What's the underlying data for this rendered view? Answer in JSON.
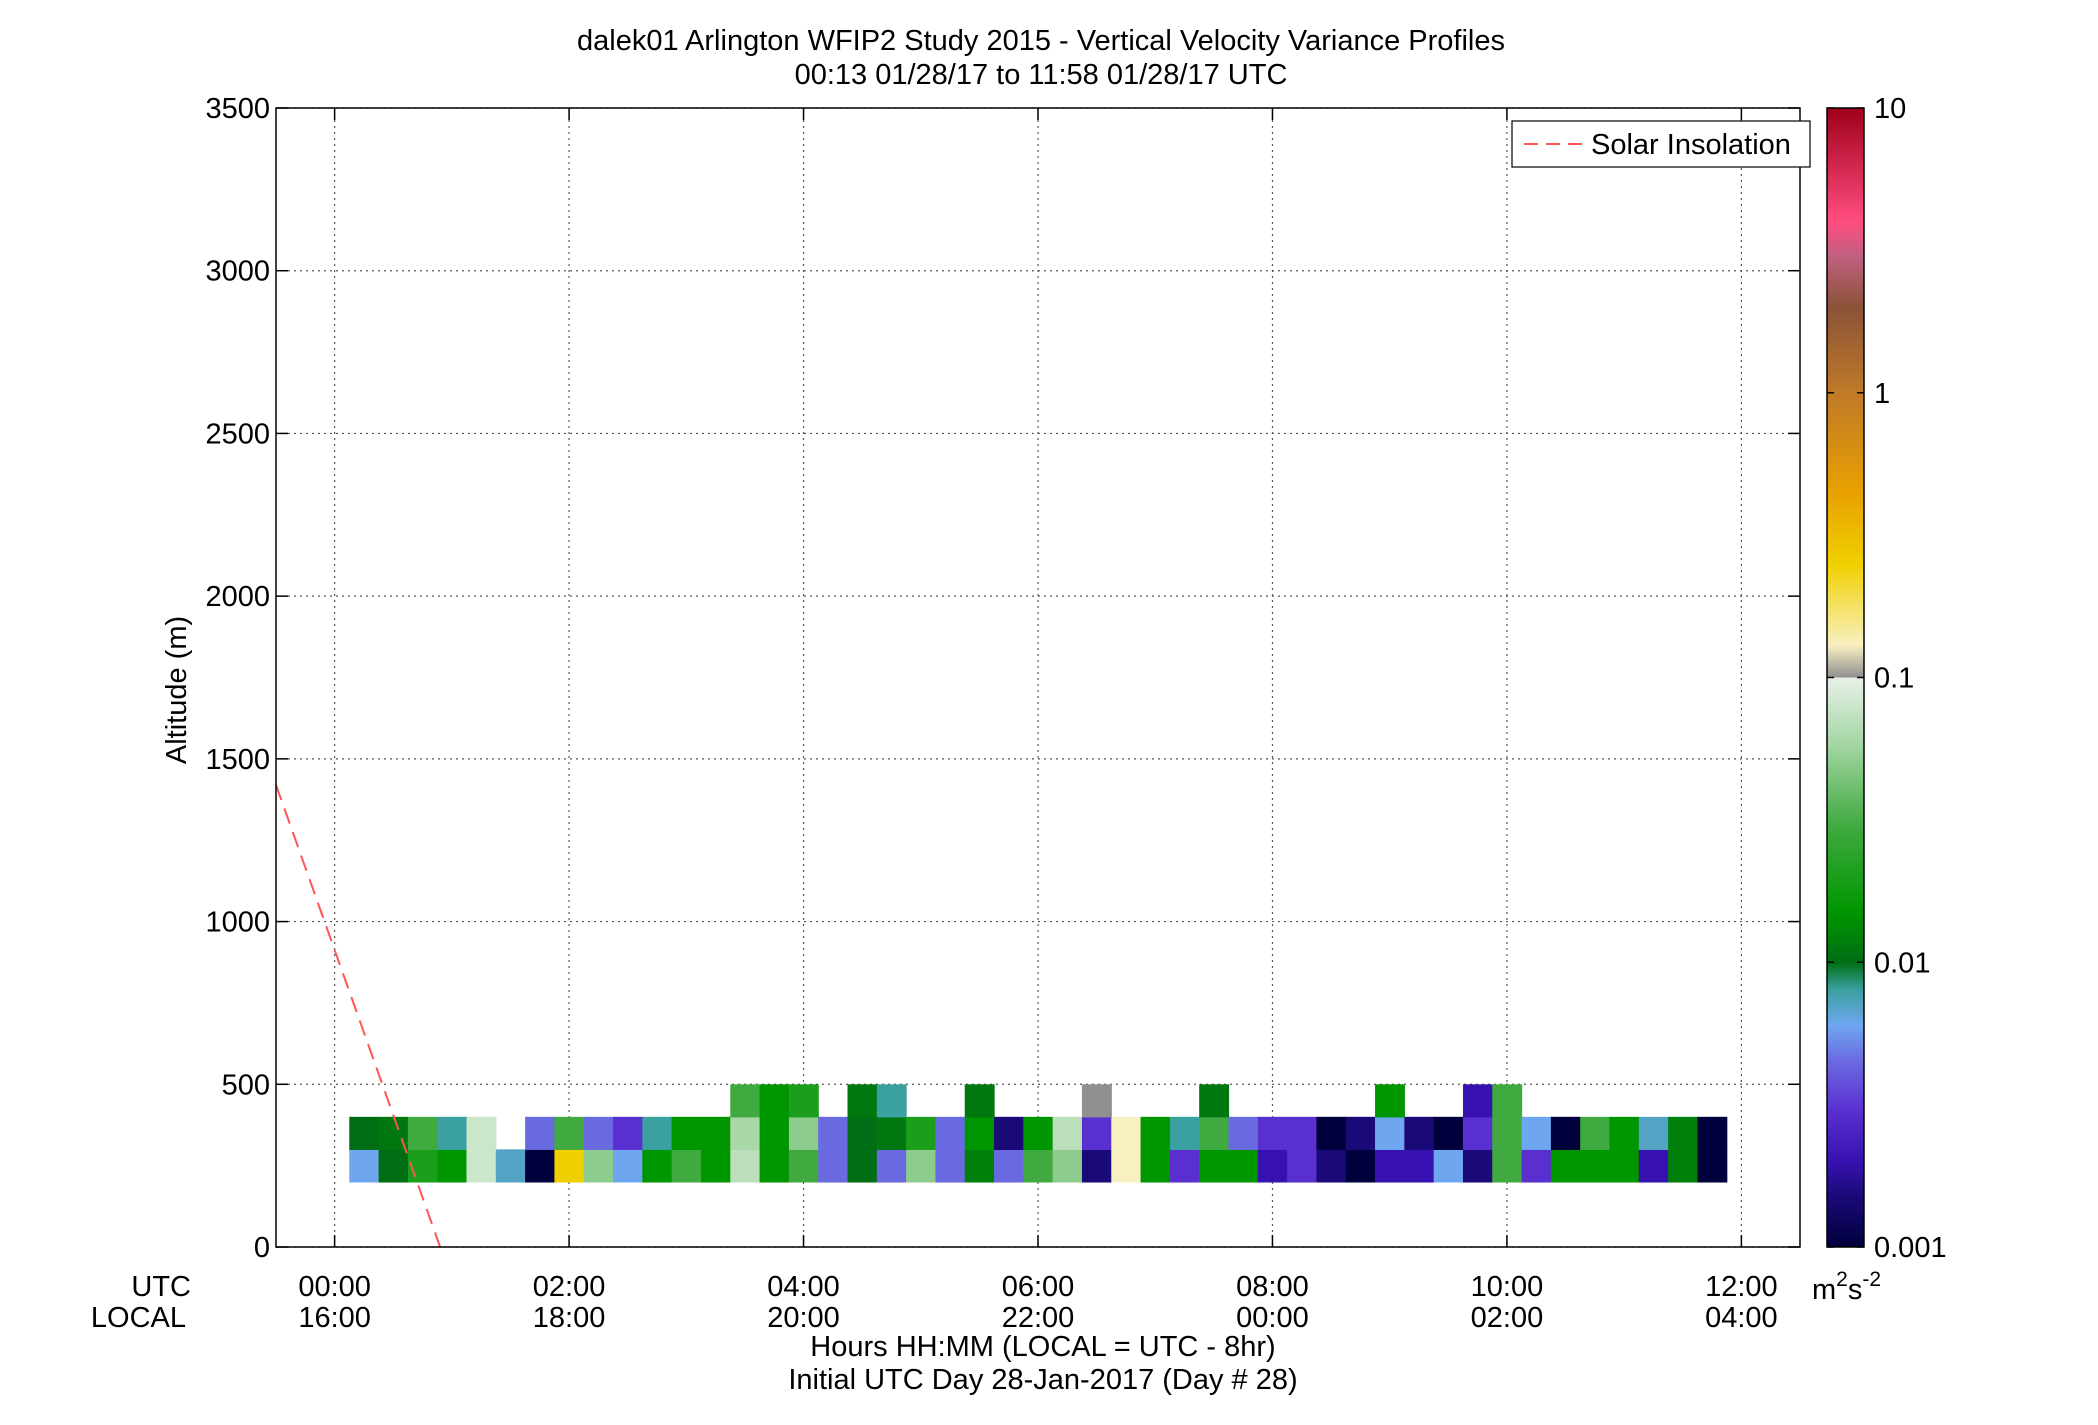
{
  "chart_data": {
    "type": "heatmap",
    "title": "dalek01 Arlington WFIP2 Study 2015 - Vertical Velocity Variance Profiles",
    "subtitle": "00:13 01/28/17 to 11:58 01/28/17  UTC",
    "ylabel": "Altitude (m)",
    "xlabel_line1": "Hours HH:MM  (LOCAL = UTC - 8hr)",
    "xlabel_line2": "Initial UTC Day 28-Jan-2017 (Day # 28)",
    "xrow_labels": [
      "UTC",
      "LOCAL"
    ],
    "xlim_hours": [
      -0.5,
      12.5
    ],
    "ylim": [
      0,
      3500
    ],
    "yticks": [
      0,
      500,
      1000,
      1500,
      2000,
      2500,
      3000,
      3500
    ],
    "xticks": [
      {
        "hour": 0,
        "utc": "00:00",
        "local": "16:00"
      },
      {
        "hour": 2,
        "utc": "02:00",
        "local": "18:00"
      },
      {
        "hour": 4,
        "utc": "04:00",
        "local": "20:00"
      },
      {
        "hour": 6,
        "utc": "06:00",
        "local": "22:00"
      },
      {
        "hour": 8,
        "utc": "08:00",
        "local": "00:00"
      },
      {
        "hour": 10,
        "utc": "10:00",
        "local": "02:00"
      },
      {
        "hour": 12,
        "utc": "12:00",
        "local": "04:00"
      }
    ],
    "grid": true,
    "legend": {
      "position": "top-right",
      "entries": [
        {
          "label": "Solar Insolation",
          "color": "#ff6666",
          "style": "dashed"
        }
      ]
    },
    "solar_insolation_line": {
      "x": [
        -0.5,
        0.9
      ],
      "y": [
        1420,
        0
      ]
    },
    "colorbar": {
      "scale": "log",
      "range": [
        0.001,
        10
      ],
      "ticks": [
        {
          "value": 0.001,
          "label": "0.001"
        },
        {
          "value": 0.01,
          "label": "0.01"
        },
        {
          "value": 0.1,
          "label": "0.1"
        },
        {
          "value": 1,
          "label": "1"
        },
        {
          "value": 10,
          "label": "10"
        }
      ],
      "unit_base": "m",
      "unit_sup1": "2",
      "unit_mid": "s",
      "unit_sup2": "-2"
    },
    "colormap": [
      {
        "v": 0.001,
        "c": "#00003c"
      },
      {
        "v": 0.0015,
        "c": "#1a0a78"
      },
      {
        "v": 0.002,
        "c": "#3812b0"
      },
      {
        "v": 0.003,
        "c": "#5a2fd0"
      },
      {
        "v": 0.0045,
        "c": "#6a6ae0"
      },
      {
        "v": 0.006,
        "c": "#6fa6f0"
      },
      {
        "v": 0.008,
        "c": "#3aa0a0"
      },
      {
        "v": 0.01,
        "c": "#006e14"
      },
      {
        "v": 0.015,
        "c": "#009600"
      },
      {
        "v": 0.03,
        "c": "#40aa40"
      },
      {
        "v": 0.06,
        "c": "#a8d8a8"
      },
      {
        "v": 0.1,
        "c": "#e8f0e8"
      },
      {
        "v": 0.1001,
        "c": "#909090"
      },
      {
        "v": 0.13,
        "c": "#f8f0c0"
      },
      {
        "v": 0.25,
        "c": "#f0d000"
      },
      {
        "v": 0.45,
        "c": "#e8a000"
      },
      {
        "v": 1.0,
        "c": "#c07a28"
      },
      {
        "v": 2.0,
        "c": "#8a5238"
      },
      {
        "v": 3.0,
        "c": "#c06080"
      },
      {
        "v": 4.0,
        "c": "#ff4d80"
      },
      {
        "v": 10.0,
        "c": "#a0001a"
      }
    ],
    "time_bins_hours": [
      0.25,
      0.75,
      1.25,
      1.75,
      2.25,
      2.75,
      3.25,
      3.75,
      4.25,
      4.75,
      5.25,
      5.75,
      6.25,
      6.75,
      7.25,
      7.75,
      8.25,
      8.75,
      9.25,
      9.75,
      10.25,
      10.75,
      11.25,
      11.75
    ],
    "time_bin_width_hours": 0.25,
    "altitude_bins_m": [
      {
        "bottom": 200,
        "top": 300
      },
      {
        "bottom": 300,
        "top": 400
      },
      {
        "bottom": 400,
        "top": 500
      }
    ],
    "cells": [
      {
        "t": 0.25,
        "alt": 250,
        "v": 0.006
      },
      {
        "t": 0.5,
        "alt": 250,
        "v": 0.01
      },
      {
        "t": 0.75,
        "alt": 250,
        "v": 0.02
      },
      {
        "t": 1.0,
        "alt": 250,
        "v": 0.015
      },
      {
        "t": 1.25,
        "alt": 250,
        "v": 0.08
      },
      {
        "t": 1.5,
        "alt": 250,
        "v": 0.007
      },
      {
        "t": 1.75,
        "alt": 250,
        "v": 0.001
      },
      {
        "t": 2.0,
        "alt": 250,
        "v": 0.25
      },
      {
        "t": 2.25,
        "alt": 250,
        "v": 0.05
      },
      {
        "t": 2.5,
        "alt": 250,
        "v": 0.006
      },
      {
        "t": 2.75,
        "alt": 250,
        "v": 0.015
      },
      {
        "t": 3.0,
        "alt": 250,
        "v": 0.03
      },
      {
        "t": 3.25,
        "alt": 250,
        "v": 0.015
      },
      {
        "t": 3.5,
        "alt": 250,
        "v": 0.07
      },
      {
        "t": 3.75,
        "alt": 250,
        "v": 0.015
      },
      {
        "t": 4.0,
        "alt": 250,
        "v": 0.03
      },
      {
        "t": 4.25,
        "alt": 250,
        "v": 0.0045
      },
      {
        "t": 4.5,
        "alt": 250,
        "v": 0.01
      },
      {
        "t": 4.75,
        "alt": 250,
        "v": 0.0045
      },
      {
        "t": 5.0,
        "alt": 250,
        "v": 0.05
      },
      {
        "t": 5.25,
        "alt": 250,
        "v": 0.0045
      },
      {
        "t": 5.5,
        "alt": 250,
        "v": 0.012
      },
      {
        "t": 5.75,
        "alt": 250,
        "v": 0.0045
      },
      {
        "t": 6.0,
        "alt": 250,
        "v": 0.03
      },
      {
        "t": 6.25,
        "alt": 250,
        "v": 0.05
      },
      {
        "t": 6.5,
        "alt": 250,
        "v": 0.0015
      },
      {
        "t": 6.75,
        "alt": 250,
        "v": 0.13
      },
      {
        "t": 7.0,
        "alt": 250,
        "v": 0.015
      },
      {
        "t": 7.25,
        "alt": 250,
        "v": 0.003
      },
      {
        "t": 7.5,
        "alt": 250,
        "v": 0.015
      },
      {
        "t": 7.75,
        "alt": 250,
        "v": 0.015
      },
      {
        "t": 8.0,
        "alt": 250,
        "v": 0.002
      },
      {
        "t": 8.25,
        "alt": 250,
        "v": 0.003
      },
      {
        "t": 8.5,
        "alt": 250,
        "v": 0.0015
      },
      {
        "t": 8.75,
        "alt": 250,
        "v": 0.001
      },
      {
        "t": 9.0,
        "alt": 250,
        "v": 0.002
      },
      {
        "t": 9.25,
        "alt": 250,
        "v": 0.002
      },
      {
        "t": 9.5,
        "alt": 250,
        "v": 0.006
      },
      {
        "t": 9.75,
        "alt": 250,
        "v": 0.0015
      },
      {
        "t": 10.0,
        "alt": 250,
        "v": 0.03
      },
      {
        "t": 10.25,
        "alt": 250,
        "v": 0.003
      },
      {
        "t": 10.5,
        "alt": 250,
        "v": 0.015
      },
      {
        "t": 10.75,
        "alt": 250,
        "v": 0.015
      },
      {
        "t": 11.0,
        "alt": 250,
        "v": 0.015
      },
      {
        "t": 11.25,
        "alt": 250,
        "v": 0.002
      },
      {
        "t": 11.5,
        "alt": 250,
        "v": 0.012
      },
      {
        "t": 11.75,
        "alt": 250,
        "v": 0.001
      },
      {
        "t": 0.25,
        "alt": 350,
        "v": 0.01
      },
      {
        "t": 0.5,
        "alt": 350,
        "v": 0.011
      },
      {
        "t": 0.75,
        "alt": 350,
        "v": 0.03
      },
      {
        "t": 1.0,
        "alt": 350,
        "v": 0.008
      },
      {
        "t": 1.25,
        "alt": 350,
        "v": 0.08
      },
      {
        "t": 1.75,
        "alt": 350,
        "v": 0.0045
      },
      {
        "t": 2.0,
        "alt": 350,
        "v": 0.03
      },
      {
        "t": 2.25,
        "alt": 350,
        "v": 0.0045
      },
      {
        "t": 2.5,
        "alt": 350,
        "v": 0.003
      },
      {
        "t": 2.75,
        "alt": 350,
        "v": 0.008
      },
      {
        "t": 3.0,
        "alt": 350,
        "v": 0.015
      },
      {
        "t": 3.25,
        "alt": 350,
        "v": 0.015
      },
      {
        "t": 3.5,
        "alt": 350,
        "v": 0.06
      },
      {
        "t": 3.75,
        "alt": 350,
        "v": 0.015
      },
      {
        "t": 4.0,
        "alt": 350,
        "v": 0.05
      },
      {
        "t": 4.25,
        "alt": 350,
        "v": 0.0045
      },
      {
        "t": 4.5,
        "alt": 350,
        "v": 0.01
      },
      {
        "t": 4.75,
        "alt": 350,
        "v": 0.011
      },
      {
        "t": 5.0,
        "alt": 350,
        "v": 0.02
      },
      {
        "t": 5.25,
        "alt": 350,
        "v": 0.0045
      },
      {
        "t": 5.5,
        "alt": 350,
        "v": 0.015
      },
      {
        "t": 5.75,
        "alt": 350,
        "v": 0.0015
      },
      {
        "t": 6.0,
        "alt": 350,
        "v": 0.015
      },
      {
        "t": 6.25,
        "alt": 350,
        "v": 0.07
      },
      {
        "t": 6.5,
        "alt": 350,
        "v": 0.003
      },
      {
        "t": 6.75,
        "alt": 350,
        "v": 0.13
      },
      {
        "t": 7.0,
        "alt": 350,
        "v": 0.015
      },
      {
        "t": 7.25,
        "alt": 350,
        "v": 0.008
      },
      {
        "t": 7.5,
        "alt": 350,
        "v": 0.03
      },
      {
        "t": 7.75,
        "alt": 350,
        "v": 0.0045
      },
      {
        "t": 8.0,
        "alt": 350,
        "v": 0.003
      },
      {
        "t": 8.25,
        "alt": 350,
        "v": 0.003
      },
      {
        "t": 8.5,
        "alt": 350,
        "v": 0.001
      },
      {
        "t": 8.75,
        "alt": 350,
        "v": 0.0015
      },
      {
        "t": 9.0,
        "alt": 350,
        "v": 0.006
      },
      {
        "t": 9.25,
        "alt": 350,
        "v": 0.0015
      },
      {
        "t": 9.5,
        "alt": 350,
        "v": 0.001
      },
      {
        "t": 9.75,
        "alt": 350,
        "v": 0.003
      },
      {
        "t": 10.0,
        "alt": 350,
        "v": 0.03
      },
      {
        "t": 10.25,
        "alt": 350,
        "v": 0.006
      },
      {
        "t": 10.5,
        "alt": 350,
        "v": 0.001
      },
      {
        "t": 10.75,
        "alt": 350,
        "v": 0.03
      },
      {
        "t": 11.0,
        "alt": 350,
        "v": 0.015
      },
      {
        "t": 11.25,
        "alt": 350,
        "v": 0.007
      },
      {
        "t": 11.5,
        "alt": 350,
        "v": 0.012
      },
      {
        "t": 11.75,
        "alt": 350,
        "v": 0.001
      },
      {
        "t": 3.5,
        "alt": 450,
        "v": 0.03
      },
      {
        "t": 3.75,
        "alt": 450,
        "v": 0.015
      },
      {
        "t": 4.0,
        "alt": 450,
        "v": 0.02
      },
      {
        "t": 4.5,
        "alt": 450,
        "v": 0.011
      },
      {
        "t": 4.75,
        "alt": 450,
        "v": 0.008
      },
      {
        "t": 5.5,
        "alt": 450,
        "v": 0.011
      },
      {
        "t": 6.5,
        "alt": 450,
        "v": 0.1001
      },
      {
        "t": 7.5,
        "alt": 450,
        "v": 0.011
      },
      {
        "t": 9.0,
        "alt": 450,
        "v": 0.015
      },
      {
        "t": 9.75,
        "alt": 450,
        "v": 0.002
      },
      {
        "t": 10.0,
        "alt": 450,
        "v": 0.03
      }
    ]
  }
}
